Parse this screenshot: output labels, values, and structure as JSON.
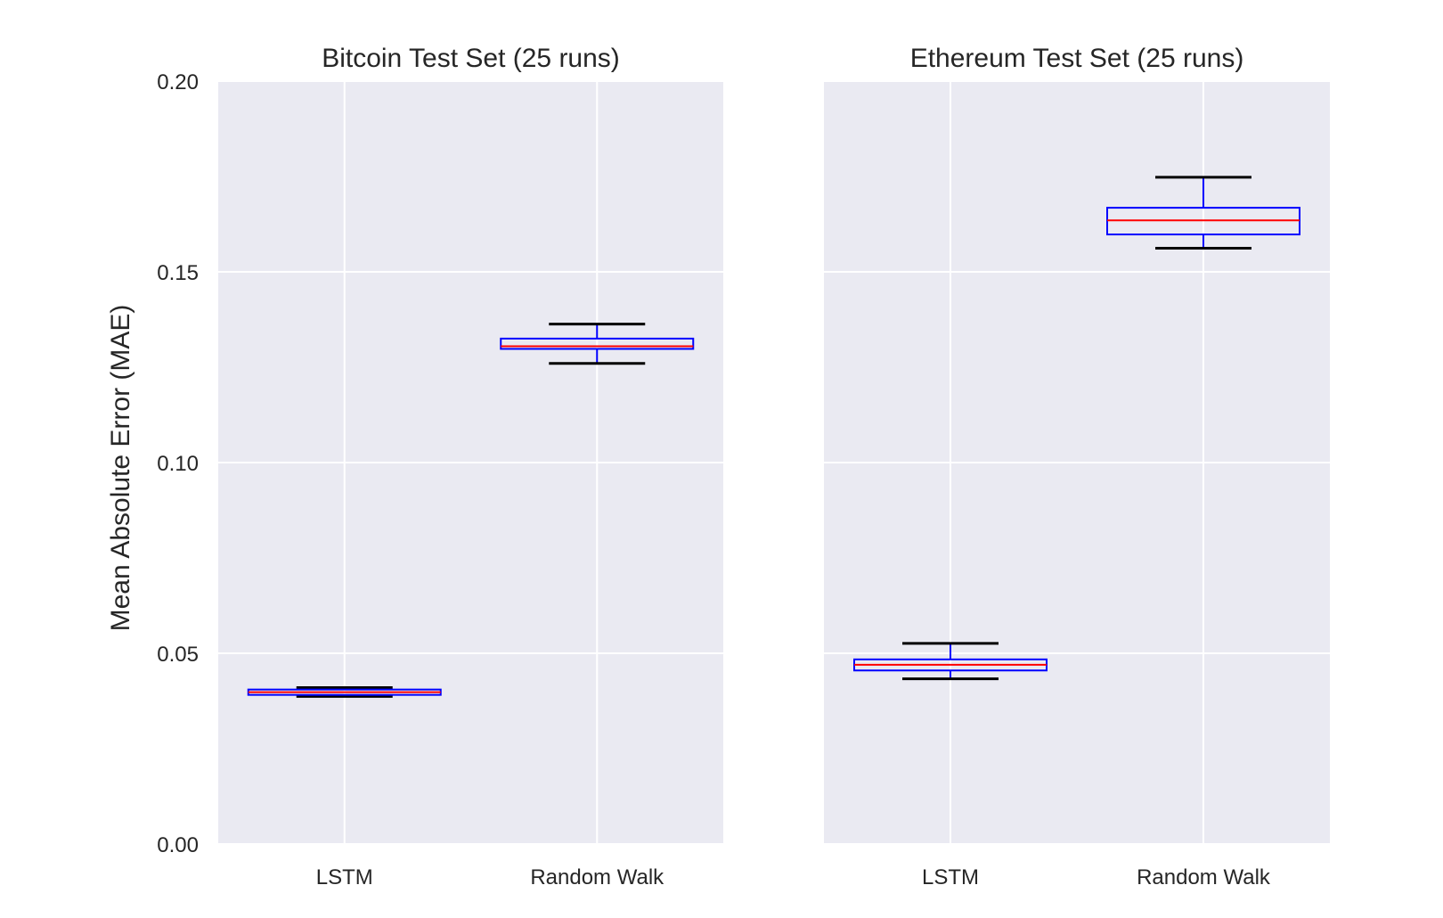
{
  "chart_data": {
    "type": "boxplot",
    "ylabel": "Mean Absolute Error (MAE)",
    "ylim": [
      0.0,
      0.2
    ],
    "yticks": [
      "0.00",
      "0.05",
      "0.10",
      "0.15",
      "0.20"
    ],
    "grid": true,
    "sharey": true,
    "panels": [
      {
        "title": "Bitcoin Test Set (25 runs)",
        "categories": [
          "LSTM",
          "Random Walk"
        ],
        "boxes": [
          {
            "whislo": 0.0387,
            "q1": 0.0391,
            "med": 0.0398,
            "q3": 0.0405,
            "whishi": 0.041
          },
          {
            "whislo": 0.126,
            "q1": 0.1298,
            "med": 0.1305,
            "q3": 0.1325,
            "whishi": 0.1363
          }
        ]
      },
      {
        "title": "Ethereum Test Set (25 runs)",
        "categories": [
          "LSTM",
          "Random Walk"
        ],
        "boxes": [
          {
            "whislo": 0.0433,
            "q1": 0.0455,
            "med": 0.047,
            "q3": 0.0484,
            "whishi": 0.0526
          },
          {
            "whislo": 0.1562,
            "q1": 0.1598,
            "med": 0.1635,
            "q3": 0.1668,
            "whishi": 0.1748
          }
        ]
      }
    ]
  }
}
